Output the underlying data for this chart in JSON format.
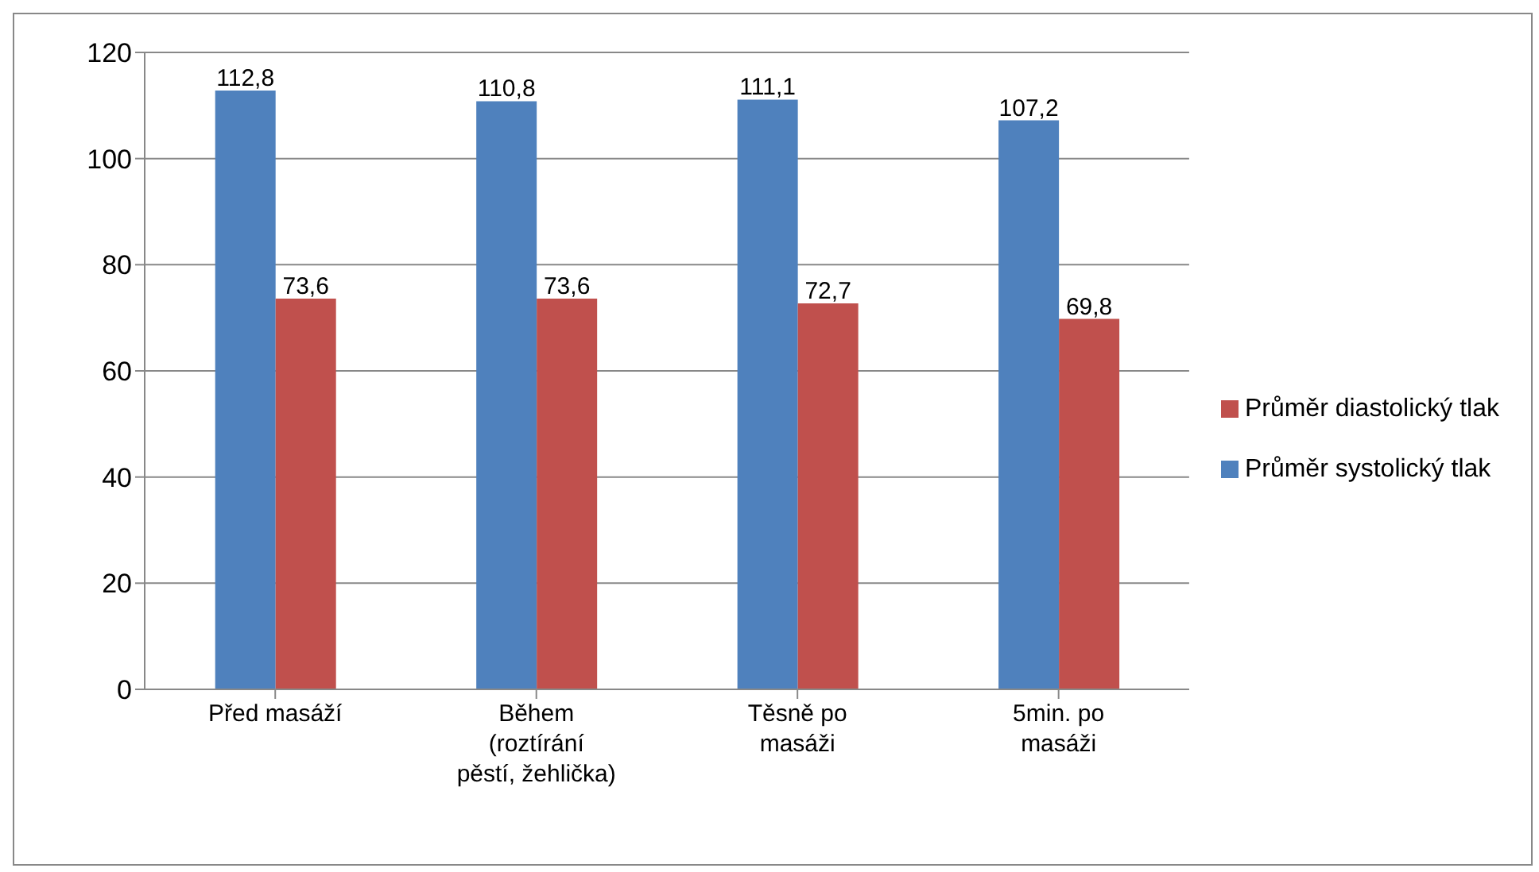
{
  "chart_data": {
    "type": "bar",
    "categories": [
      "Před masáží",
      "Během\n(roztírání\npěstí, žehlička)",
      "Těsně po\nmasáži",
      "5min. po\nmasáži"
    ],
    "series": [
      {
        "name": "Průměr systolický tlak",
        "color": "#4f81bd",
        "values": [
          112.8,
          110.8,
          111.1,
          107.2
        ],
        "value_labels": [
          "112,8",
          "110,8",
          "111,1",
          "107,2"
        ]
      },
      {
        "name": "Průměr diastolický tlak",
        "color": "#c0504d",
        "values": [
          73.6,
          73.6,
          72.7,
          69.8
        ],
        "value_labels": [
          "73,6",
          "73,6",
          "72,7",
          "69,8"
        ]
      }
    ],
    "ylim": [
      0,
      120
    ],
    "yticks": [
      0,
      20,
      40,
      60,
      80,
      100,
      120
    ],
    "grid": "y",
    "legend": "right"
  }
}
